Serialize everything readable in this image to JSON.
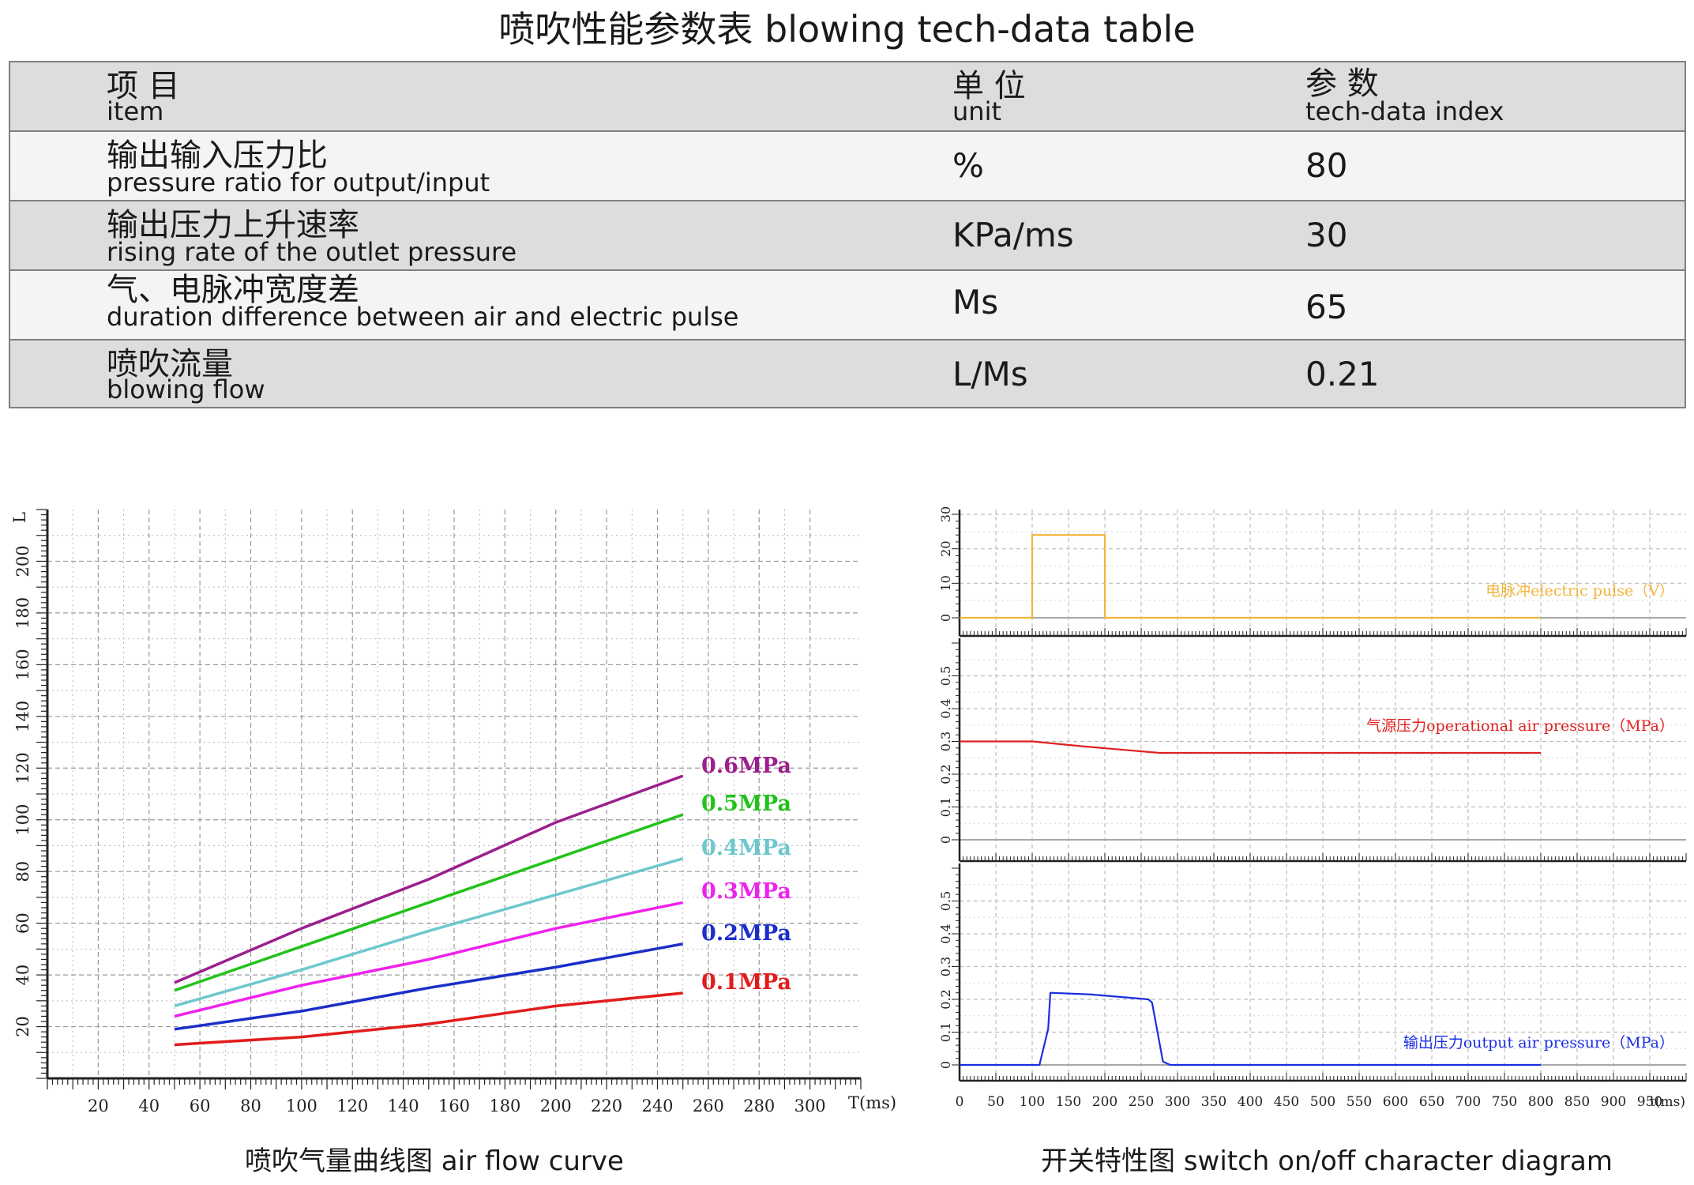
{
  "page_title": "喷吹性能参数表  blowing tech-data table",
  "table": {
    "header": {
      "item_zh": "项  目",
      "item_en": "item",
      "unit_zh": "单  位",
      "unit_en": "unit",
      "index_zh": "参  数",
      "index_en": "tech-data index"
    },
    "rows": [
      {
        "zh": "输出输入压力比",
        "en": "pressure ratio for output/input",
        "unit": "%",
        "value": "80"
      },
      {
        "zh": "输出压力上升速率",
        "en": "rising rate of the outlet pressure",
        "unit": "KPa/ms",
        "value": "30"
      },
      {
        "zh": "气、电脉冲宽度差",
        "en": "duration difference between air and electric pulse",
        "unit": "Ms",
        "value": "65"
      },
      {
        "zh": "喷吹流量",
        "en": "blowing flow",
        "unit": "L/Ms",
        "value": "0.21"
      }
    ]
  },
  "captions": {
    "left": "喷吹气量曲线图  air flow curve",
    "right": "开关特性图  switch on/off character diagram"
  },
  "colors": {
    "mpa_0_6": "#9b1f8c",
    "mpa_0_5": "#22c21a",
    "mpa_0_4": "#6cc8cc",
    "mpa_0_3": "#ee22ee",
    "mpa_0_2": "#1a2ec8",
    "mpa_0_1": "#e21c1c",
    "electric_pulse": "#f2b43a",
    "operational_pressure": "#e02020",
    "output_pressure": "#1a2ee0",
    "grid": "#b9b9b9"
  },
  "chart_data": [
    {
      "type": "line",
      "title": "",
      "xlabel": "T(ms)",
      "ylabel": "L",
      "xlim": [
        0,
        320
      ],
      "ylim": [
        0,
        220
      ],
      "x_ticks": [
        20,
        40,
        60,
        80,
        100,
        120,
        140,
        160,
        180,
        200,
        220,
        240,
        260,
        280,
        300
      ],
      "y_ticks": [
        20,
        40,
        60,
        80,
        100,
        120,
        140,
        160,
        180,
        200
      ],
      "grid": true,
      "series": [
        {
          "name": "0.6MPa",
          "x": [
            50,
            100,
            150,
            200,
            250
          ],
          "values": [
            37,
            58,
            77,
            99,
            117
          ]
        },
        {
          "name": "0.5MPa",
          "x": [
            50,
            100,
            150,
            200,
            250
          ],
          "values": [
            34,
            51,
            68,
            85,
            102
          ]
        },
        {
          "name": "0.4MPa",
          "x": [
            50,
            100,
            150,
            200,
            250
          ],
          "values": [
            28,
            42,
            57,
            71,
            85
          ]
        },
        {
          "name": "0.3MPa",
          "x": [
            50,
            100,
            150,
            200,
            250
          ],
          "values": [
            24,
            36,
            46,
            58,
            68
          ]
        },
        {
          "name": "0.2MPa",
          "x": [
            50,
            100,
            150,
            200,
            250
          ],
          "values": [
            19,
            26,
            35,
            43,
            52
          ]
        },
        {
          "name": "0.1MPa",
          "x": [
            50,
            100,
            150,
            200,
            250
          ],
          "values": [
            13,
            16,
            21,
            28,
            33
          ]
        }
      ]
    },
    {
      "type": "line",
      "title": "",
      "xlabel": "t(ms)",
      "xlim": [
        0,
        1000
      ],
      "x_ticks": [
        0,
        50,
        100,
        150,
        200,
        250,
        300,
        350,
        400,
        450,
        500,
        550,
        600,
        650,
        700,
        750,
        800,
        850,
        900,
        950
      ],
      "grid": true,
      "panels": [
        {
          "name": "电脉冲electric pulse（V）",
          "ylim": [
            0,
            30
          ],
          "y_ticks": [
            0,
            10,
            20,
            30
          ],
          "x": [
            0,
            100,
            100,
            200,
            200,
            800
          ],
          "values": [
            0,
            0,
            24,
            24,
            0,
            0
          ]
        },
        {
          "name": "气源压力operational air pressure（MPa）",
          "ylim": [
            0,
            0.6
          ],
          "y_ticks": [
            0,
            0.1,
            0.2,
            0.3,
            0.4,
            0.5
          ],
          "x": [
            0,
            100,
            170,
            275,
            800
          ],
          "values": [
            0.3,
            0.3,
            0.285,
            0.265,
            0.265
          ]
        },
        {
          "name": "输出压力output air pressure（MPa）",
          "ylim": [
            0,
            0.6
          ],
          "y_ticks": [
            0,
            0.1,
            0.2,
            0.3,
            0.4,
            0.5
          ],
          "x": [
            0,
            110,
            122,
            125,
            180,
            260,
            265,
            280,
            290,
            800
          ],
          "values": [
            0,
            0,
            0.11,
            0.22,
            0.215,
            0.2,
            0.19,
            0.01,
            0,
            0
          ]
        }
      ]
    }
  ]
}
